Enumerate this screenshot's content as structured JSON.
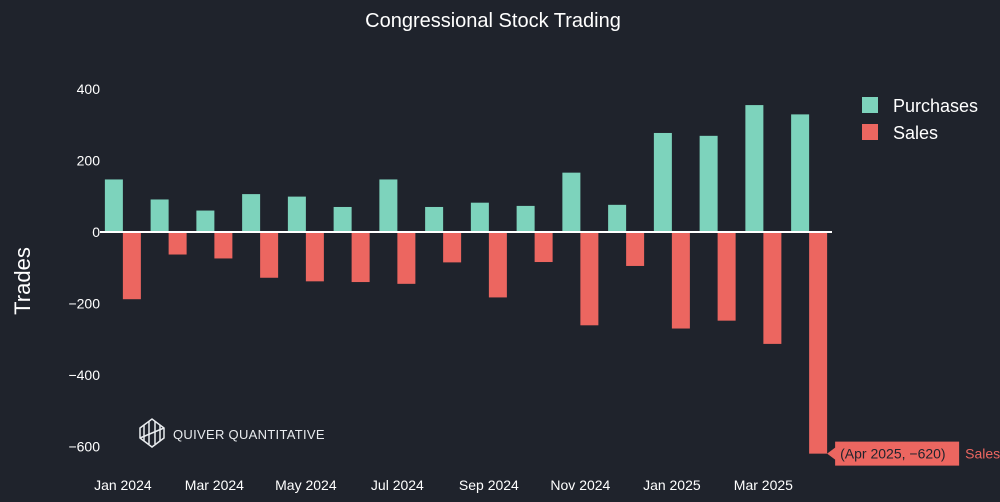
{
  "colors": {
    "background": "#1f232c",
    "purchases": "#7dd3bc",
    "sales": "#ec6660",
    "text": "#ffffff"
  },
  "watermark": {
    "icon": "quiver-logo-icon",
    "text": "QUIVER QUANTITATIVE"
  },
  "hover": {
    "label": "(Apr 2025, −620)",
    "series": "Sales"
  },
  "chart_data": {
    "type": "bar",
    "title": "Congressional Stock Trading",
    "xlabel": "",
    "ylabel": "Trades",
    "ylim": [
      -650,
      450
    ],
    "yticks": [
      400,
      200,
      0,
      -200,
      -400,
      -600
    ],
    "ytick_labels": [
      "400",
      "200",
      "0",
      "−200",
      "−400",
      "−600"
    ],
    "xtick_labels": [
      "Jan 2024",
      "Mar 2024",
      "May 2024",
      "Jul 2024",
      "Sep 2024",
      "Nov 2024",
      "Jan 2025",
      "Mar 2025"
    ],
    "categories": [
      "Jan 2024",
      "Feb 2024",
      "Mar 2024",
      "Apr 2024",
      "May 2024",
      "Jun 2024",
      "Jul 2024",
      "Aug 2024",
      "Sep 2024",
      "Oct 2024",
      "Nov 2024",
      "Dec 2024",
      "Jan 2025",
      "Feb 2025",
      "Mar 2025",
      "Apr 2025"
    ],
    "legend_position": "top-right",
    "series": [
      {
        "name": "Purchases",
        "values": [
          147,
          91,
          60,
          106,
          99,
          70,
          147,
          70,
          82,
          73,
          166,
          76,
          277,
          269,
          355,
          329
        ]
      },
      {
        "name": "Sales",
        "values": [
          -188,
          -63,
          -74,
          -128,
          -138,
          -140,
          -145,
          -85,
          -183,
          -84,
          -261,
          -95,
          -270,
          -248,
          -313,
          -620
        ]
      }
    ]
  }
}
